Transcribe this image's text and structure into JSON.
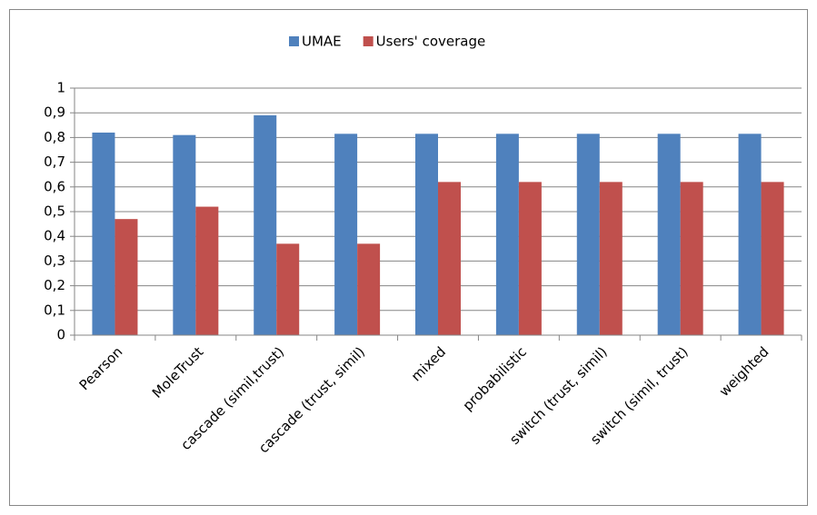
{
  "chart_data": {
    "type": "bar",
    "categories": [
      "Pearson",
      "MoleTrust",
      "cascade (simil,trust)",
      "cascade (trust, simil)",
      "mixed",
      "probabilistic",
      "switch (trust, simil)",
      "switch (simil, trust)",
      "weighted"
    ],
    "series": [
      {
        "name": "UMAE",
        "color": "#4f81bd",
        "values": [
          0.82,
          0.81,
          0.89,
          0.815,
          0.815,
          0.815,
          0.815,
          0.815,
          0.815
        ]
      },
      {
        "name": "Users' coverage",
        "color": "#c0504d",
        "values": [
          0.47,
          0.52,
          0.37,
          0.37,
          0.62,
          0.62,
          0.62,
          0.62,
          0.62
        ]
      }
    ],
    "ylim": [
      0,
      1
    ],
    "yticks": [
      0,
      {
        "value": 0.1,
        "label": "0,1"
      },
      {
        "value": 0.2,
        "label": "0,2"
      },
      {
        "value": 0.3,
        "label": "0,3"
      },
      {
        "value": 0.4,
        "label": "0,4"
      },
      {
        "value": 0.5,
        "label": "0,5"
      },
      {
        "value": 0.6,
        "label": "0,6"
      },
      {
        "value": 0.7,
        "label": "0,7"
      },
      {
        "value": 0.8,
        "label": "0,8"
      },
      {
        "value": 0.9,
        "label": "0,9"
      },
      1
    ],
    "grid": true,
    "legend": "top"
  }
}
